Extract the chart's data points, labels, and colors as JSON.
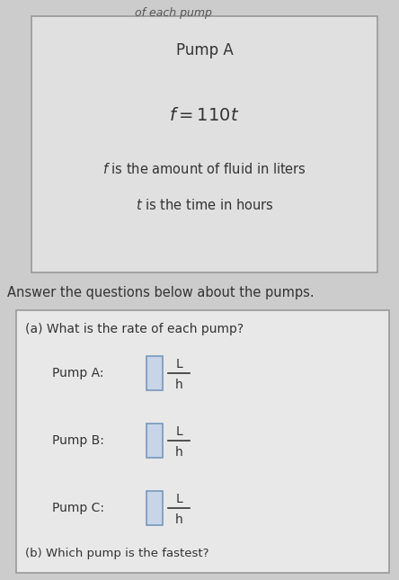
{
  "bg_color": "#cccccc",
  "box1_bg": "#e0e0e0",
  "box2_bg": "#e8e8e8",
  "pump_a_title": "Pump A",
  "pump_a_formula": "$f=110t$",
  "pump_a_desc1": "$f$ is the amount of fluid in liters",
  "pump_a_desc2": "$t$ is the time in hours",
  "answer_text": "Answer the questions below about the pumps.",
  "part_a_text": "(a) What is the rate of each pump?",
  "pump_a_label": "Pump A:",
  "pump_b_label": "Pump B:",
  "pump_c_label": "Pump C:",
  "part_b_text": "(b) Which pump is the fastest?",
  "unit_L": "L",
  "unit_h": "h",
  "font_color": "#333333",
  "box_edge_color": "#999999",
  "input_box_color": "#c8d4e8",
  "input_edge_color": "#7799bb"
}
